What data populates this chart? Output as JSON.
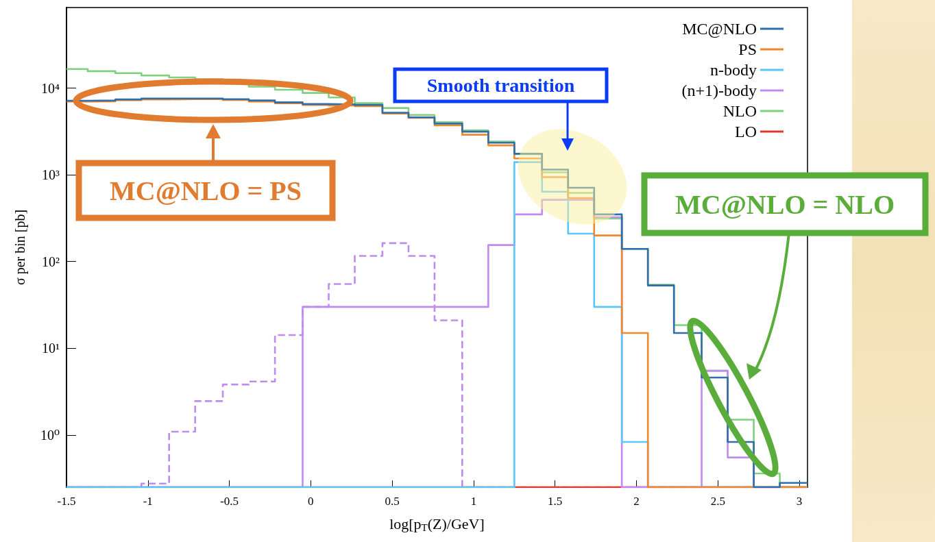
{
  "chart_data": {
    "type": "histogram",
    "xlabel": "log[p$_{T}$(Z)/GeV]",
    "ylabel": "σ per bin [pb]",
    "log": "y",
    "bins": [
      -1.5,
      -1.37,
      -1.2,
      -1.04,
      -0.87,
      -0.71,
      -0.54,
      -0.38,
      -0.22,
      -0.05,
      0.11,
      0.27,
      0.44,
      0.6,
      0.76,
      0.93,
      1.09,
      1.25,
      1.42,
      1.58,
      1.74,
      1.91,
      2.07,
      2.23,
      2.4,
      2.56,
      2.72,
      2.88,
      3.05
    ],
    "series": [
      {
        "name": "MC@NLO",
        "color": "#2f6ea8",
        "values": [
          7150,
          7200,
          7400,
          7600,
          7600,
          7600,
          7450,
          7200,
          6850,
          6550,
          6500,
          6400,
          5200,
          4600,
          3900,
          3150,
          2350,
          1750,
          1150,
          710,
          350,
          140,
          53,
          15,
          4.6,
          0.83,
          null,
          0.28
        ]
      },
      {
        "name": "PS",
        "color": "#f0882e",
        "values": [
          7000,
          7050,
          7250,
          7400,
          7450,
          7450,
          7300,
          7000,
          6700,
          6400,
          6300,
          6200,
          5100,
          4540,
          3720,
          2900,
          2190,
          1545,
          940,
          540,
          200,
          15,
          null,
          null,
          null,
          null,
          null,
          null
        ]
      },
      {
        "name": "n-body",
        "color": "#5ac8f5",
        "values": [
          null,
          null,
          null,
          null,
          null,
          null,
          null,
          null,
          null,
          null,
          null,
          null,
          null,
          null,
          null,
          null,
          null,
          1400,
          640,
          210,
          30,
          0.83,
          null,
          null,
          null,
          null,
          null,
          null
        ]
      },
      {
        "name": "(n+1)-body",
        "color": "#c08af0",
        "values": [
          null,
          null,
          null,
          null,
          null,
          null,
          null,
          null,
          null,
          30,
          30,
          30,
          30,
          30,
          30,
          30,
          155,
          350,
          515,
          515,
          325,
          null,
          null,
          null,
          5.5,
          0.55,
          null,
          null
        ]
      },
      {
        "name": "NLO",
        "color": "#7fd17f",
        "values": [
          16600,
          15700,
          14900,
          14000,
          13300,
          12700,
          11400,
          10400,
          9570,
          8800,
          7800,
          6700,
          5900,
          4900,
          4050,
          3250,
          2420,
          1730,
          1070,
          620,
          313,
          140,
          54,
          18.5,
          5.5,
          1.5,
          0.36,
          null
        ]
      },
      {
        "name": "LO",
        "color": "#e03a2e",
        "values": [
          null,
          null,
          null,
          null,
          null,
          null,
          null,
          null,
          null,
          null,
          null,
          null,
          null,
          null,
          null,
          null,
          null,
          null,
          null,
          null,
          null,
          null,
          null,
          null,
          null,
          null,
          null,
          null
        ]
      },
      {
        "color": "#c08af0",
        "line_style": "dashed",
        "values": [
          null,
          null,
          null,
          0.275,
          1.09,
          2.46,
          3.82,
          4.14,
          14.2,
          30,
          55,
          116,
          163,
          116,
          21,
          null,
          null,
          null,
          null,
          null,
          null,
          null,
          null,
          null,
          null,
          null,
          null,
          null
        ]
      }
    ],
    "xlim": [
      -1.5,
      3.05
    ],
    "xticks": [
      -1.5,
      -1,
      -0.5,
      0,
      0.5,
      1,
      1.5,
      2,
      2.5,
      3
    ],
    "ylim": [
      0.25,
      85000
    ],
    "yticks": [
      {
        "value": 1,
        "label": "10⁰"
      },
      {
        "value": 10,
        "label": "10¹"
      },
      {
        "value": 100,
        "label": "10²"
      },
      {
        "value": 1000,
        "label": "10³"
      },
      {
        "value": 10000,
        "label": "10⁴"
      }
    ],
    "grid": false,
    "legend": "top right",
    "annotations": [
      "MC@NLO = PS",
      "Smooth transition",
      "MC@NLO = NLO"
    ]
  }
}
